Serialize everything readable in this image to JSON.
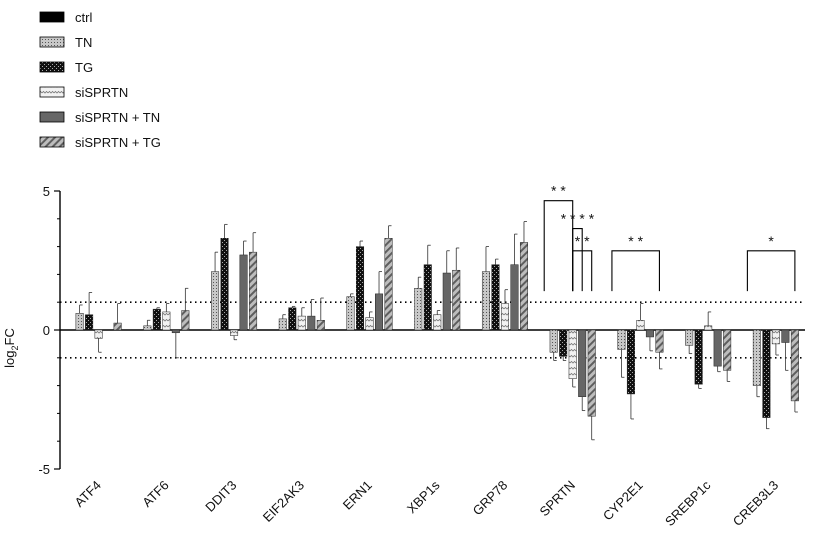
{
  "chart_data": {
    "type": "bar",
    "title": "",
    "xlabel": "",
    "ylabel": "log2FC",
    "ylabel_main": "log",
    "ylabel_sub": "2",
    "ylabel_tail": "FC",
    "ylim": [
      -5,
      5
    ],
    "yticks": [
      "5",
      "0",
      "-5"
    ],
    "ytick_values": [
      5,
      0,
      -5
    ],
    "reference_lines": [
      1,
      -1
    ],
    "legend_position": "top-left",
    "categories": [
      "ATF4",
      "ATF6",
      "DDIT3",
      "EIF2AK3",
      "ERN1",
      "XBP1s",
      "GRP78",
      "SPRTN",
      "CYP2E1",
      "SREBP1c",
      "CREB3L3"
    ],
    "series": [
      {
        "name": "ctrl",
        "pattern": "black",
        "color": "#000000",
        "values": [
          0,
          0,
          0,
          0,
          0,
          0,
          0,
          0,
          0,
          0,
          0
        ],
        "errors": [
          0,
          0,
          0,
          0,
          0,
          0,
          0,
          0,
          0,
          0,
          0
        ]
      },
      {
        "name": "TN",
        "pattern": "dots",
        "color": "#bdbdbd",
        "values": [
          0.6,
          0.15,
          2.1,
          0.4,
          1.2,
          1.5,
          2.1,
          -0.8,
          -0.7,
          -0.55,
          -2.0
        ],
        "errors": [
          0.3,
          0.2,
          0.7,
          0.15,
          0.1,
          0.4,
          0.9,
          0.3,
          1.0,
          0.3,
          0.4
        ]
      },
      {
        "name": "TG",
        "pattern": "checker",
        "color": "#1f1f1f",
        "values": [
          0.55,
          0.75,
          3.3,
          0.8,
          3.0,
          2.35,
          2.35,
          -0.95,
          -2.3,
          -1.95,
          -3.15
        ],
        "errors": [
          0.8,
          0.05,
          0.5,
          0.05,
          0.2,
          0.7,
          0.2,
          0.15,
          0.9,
          0.15,
          0.4
        ]
      },
      {
        "name": "siSPRTN",
        "pattern": "wave",
        "color": "#e6e6e6",
        "values": [
          -0.3,
          0.65,
          -0.2,
          0.5,
          0.45,
          0.55,
          0.95,
          -1.75,
          0.35,
          0.15,
          -0.5
        ],
        "errors": [
          0.5,
          0.3,
          0.15,
          0.3,
          0.2,
          0.15,
          0.5,
          0.3,
          0.6,
          0.5,
          0.4
        ]
      },
      {
        "name": "siSPRTN + TN",
        "pattern": "solid-gray",
        "color": "#666666",
        "values": [
          0,
          -0.1,
          2.7,
          0.5,
          1.3,
          2.05,
          2.35,
          -2.4,
          -0.25,
          -1.3,
          -0.45
        ],
        "errors": [
          0,
          0.9,
          0.5,
          0.6,
          0.8,
          0.8,
          1.1,
          0.5,
          0.5,
          0.2,
          1.0
        ]
      },
      {
        "name": "siSPRTN + TG",
        "pattern": "hatch",
        "color": "#999999",
        "values": [
          0.25,
          0.7,
          2.8,
          0.35,
          3.3,
          2.15,
          3.15,
          -3.1,
          -0.8,
          -1.45,
          -2.55
        ],
        "errors": [
          0.7,
          0.8,
          0.7,
          0.8,
          0.45,
          0.8,
          0.75,
          0.85,
          0.6,
          0.4,
          0.4
        ]
      }
    ],
    "significance": [
      {
        "category": "SPRTN",
        "from_series": "ctrl",
        "to_series": "siSPRTN",
        "label": "* *",
        "level": 4.65
      },
      {
        "category": "SPRTN",
        "from_series": "siSPRTN",
        "to_series": "siSPRTN + TN",
        "label": "* * * *",
        "level": 3.65
      },
      {
        "category": "SPRTN",
        "from_series": "siSPRTN",
        "to_series": "siSPRTN + TG",
        "label": "* *",
        "level": 2.85
      },
      {
        "category": "CYP2E1",
        "from_series": "ctrl",
        "to_series": "siSPRTN + TG",
        "label": "* *",
        "level": 2.85
      },
      {
        "category": "CREB3L3",
        "from_series": "ctrl",
        "to_series": "siSPRTN + TG",
        "label": "*",
        "level": 2.85
      }
    ]
  }
}
